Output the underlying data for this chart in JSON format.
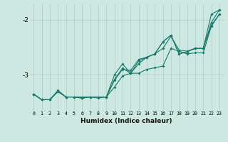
{
  "xlabel": "Humidex (Indice chaleur)",
  "bg_color": "#cce8e0",
  "line_color": "#1a7a6e",
  "grid_color": "#aacccc",
  "x": [
    0,
    1,
    2,
    3,
    4,
    5,
    6,
    7,
    8,
    9,
    10,
    11,
    12,
    13,
    14,
    15,
    16,
    17,
    18,
    19,
    20,
    21,
    22,
    23
  ],
  "line1": [
    -3.35,
    -3.45,
    -3.45,
    -3.3,
    -3.4,
    -3.4,
    -3.42,
    -3.4,
    -3.4,
    -3.4,
    -3.22,
    -3.02,
    -2.97,
    -2.97,
    -2.9,
    -2.87,
    -2.84,
    -2.52,
    -2.57,
    -2.62,
    -2.6,
    -2.6,
    -2.12,
    -1.9
  ],
  "line2": [
    -3.35,
    -3.45,
    -3.45,
    -3.28,
    -3.4,
    -3.4,
    -3.4,
    -3.4,
    -3.42,
    -3.4,
    -3.1,
    -2.9,
    -2.92,
    -2.72,
    -2.68,
    -2.62,
    -2.52,
    -2.3,
    -2.55,
    -2.57,
    -2.52,
    -2.52,
    -2.1,
    -1.9
  ],
  "line3": [
    -3.35,
    -3.45,
    -3.45,
    -3.3,
    -3.4,
    -3.4,
    -3.42,
    -3.4,
    -3.4,
    -3.4,
    -3.0,
    -2.8,
    -2.97,
    -2.8,
    -2.68,
    -2.62,
    -2.4,
    -2.28,
    -2.62,
    -2.58,
    -2.52,
    -2.52,
    -1.9,
    -1.82
  ],
  "line4": [
    -3.35,
    -3.45,
    -3.45,
    -3.3,
    -3.4,
    -3.4,
    -3.42,
    -3.4,
    -3.4,
    -3.4,
    -3.08,
    -2.88,
    -2.97,
    -2.75,
    -2.68,
    -2.62,
    -2.4,
    -2.28,
    -2.62,
    -2.58,
    -2.52,
    -2.52,
    -2.05,
    -1.82
  ],
  "ylim": [
    -3.65,
    -1.72
  ],
  "yticks": [
    -3,
    -2
  ],
  "xlim": [
    -0.5,
    23.5
  ]
}
